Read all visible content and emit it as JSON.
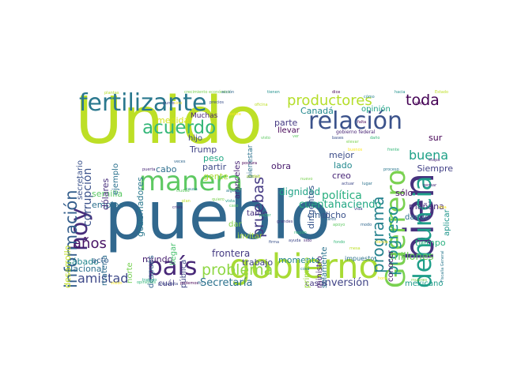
{
  "colors": {
    "background": "#ffffff"
  },
  "words": [
    {
      "text": "Unido",
      "color": "#bddf26",
      "vertical": false
    },
    {
      "text": "pueblo",
      "color": "#31688e",
      "vertical": false
    },
    {
      "text": "gobierno",
      "color": "#a8db34",
      "vertical": false
    },
    {
      "text": "fertilizante",
      "color": "#2a788e",
      "vertical": false
    },
    {
      "text": "bien",
      "color": "#46327e",
      "vertical": true
    },
    {
      "text": "relación",
      "color": "#3b528b",
      "vertical": false
    },
    {
      "text": "manera",
      "color": "#5ec962",
      "vertical": false
    },
    {
      "text": "país",
      "color": "#482878",
      "vertical": false
    },
    {
      "text": "Guerrero",
      "color": "#7ad151",
      "vertical": true
    },
    {
      "text": "denuncia",
      "color": "#1f9e89",
      "vertical": true
    },
    {
      "text": "hoy",
      "color": "#472d7b",
      "vertical": true
    },
    {
      "text": "acuerdo",
      "color": "#35b779",
      "vertical": false
    },
    {
      "text": "productores",
      "color": "#b5de2b",
      "vertical": false
    },
    {
      "text": "información",
      "color": "#355f8d",
      "vertical": true
    },
    {
      "text": "programa",
      "color": "#26828e",
      "vertical": true
    },
    {
      "text": "progreso",
      "color": "#21918c",
      "vertical": true
    },
    {
      "text": "pruebas",
      "color": "#443983",
      "vertical": true
    },
    {
      "text": "problema",
      "color": "#8fd744",
      "vertical": false
    },
    {
      "text": "toda",
      "color": "#440154",
      "vertical": false
    },
    {
      "text": "años",
      "color": "#481467",
      "vertical": false
    },
    {
      "text": "amistad",
      "color": "#3e4989",
      "vertical": false
    },
    {
      "text": "buena",
      "color": "#1fa187",
      "vertical": false
    },
    {
      "text": "corrupción",
      "color": "#3b528b",
      "vertical": true
    },
    {
      "text": "inversión",
      "color": "#414487",
      "vertical": false
    },
    {
      "text": "Secretaría",
      "color": "#2c728e",
      "vertical": false
    },
    {
      "text": "política",
      "color": "#29af7f",
      "vertical": false
    },
    {
      "text": "millones",
      "color": "#6ccd5a",
      "vertical": false
    },
    {
      "text": "haciendo",
      "color": "#22a785",
      "vertical": false
    },
    {
      "text": "cuenta",
      "color": "#26ad81",
      "vertical": false
    },
    {
      "text": "dignidad",
      "color": "#20a386",
      "vertical": false
    },
    {
      "text": "frontera",
      "color": "#443a83",
      "vertical": false
    },
    {
      "text": "mundo",
      "color": "#482071",
      "vertical": false
    },
    {
      "text": "tiempo",
      "color": "#2ab07f",
      "vertical": false
    },
    {
      "text": "mañana",
      "color": "#472c7a",
      "vertical": false
    },
    {
      "text": "Nacional",
      "color": "#2d718e",
      "vertical": false
    },
    {
      "text": "sábado",
      "color": "#24878e",
      "vertical": false
    },
    {
      "text": "casos",
      "color": "#453882",
      "vertical": false
    },
    {
      "text": "mexicano",
      "color": "#1e9c89",
      "vertical": false
    },
    {
      "text": "trabajo",
      "color": "#404588",
      "vertical": false
    },
    {
      "text": "momento",
      "color": "#24868e",
      "vertical": false
    },
    {
      "text": "Canadá",
      "color": "#23888e",
      "vertical": false
    },
    {
      "text": "parte",
      "color": "#443983",
      "vertical": false
    },
    {
      "text": "medida",
      "color": "#d2e21b",
      "vertical": false
    },
    {
      "text": "Trump",
      "color": "#414487",
      "vertical": false
    },
    {
      "text": "peso",
      "color": "#22a884",
      "vertical": false
    },
    {
      "text": "partir",
      "color": "#3e4a89",
      "vertical": false
    },
    {
      "text": "cabo",
      "color": "#2e6f8e",
      "vertical": false
    },
    {
      "text": "semilla",
      "color": "#5ac864",
      "vertical": false
    },
    {
      "text": "empleo",
      "color": "#2d708e",
      "vertical": false
    },
    {
      "text": "obra",
      "color": "#481b6d",
      "vertical": false
    },
    {
      "text": "gente",
      "color": "#addc30",
      "vertical": false
    },
    {
      "text": "mejor",
      "color": "#3d4e8a",
      "vertical": false
    },
    {
      "text": "lado",
      "color": "#23898e",
      "vertical": false
    },
    {
      "text": "creo",
      "color": "#482677",
      "vertical": false
    },
    {
      "text": "cinco",
      "color": "#365c8d",
      "vertical": false
    },
    {
      "text": "dicho",
      "color": "#3b528b",
      "vertical": false
    },
    {
      "text": "sólo",
      "color": "#471063",
      "vertical": false
    },
    {
      "text": "dando",
      "color": "#2e6e8e",
      "vertical": false
    },
    {
      "text": "sur",
      "color": "#440154",
      "vertical": false
    },
    {
      "text": "Siempre",
      "color": "#424086",
      "vertical": false
    },
    {
      "text": "opinión",
      "color": "#1fa287",
      "vertical": false
    },
    {
      "text": "dólares",
      "color": "#472e7c",
      "vertical": true
    },
    {
      "text": "ejemplo",
      "color": "#2c728e",
      "vertical": true
    },
    {
      "text": "gobernadores",
      "color": "#2a788e",
      "vertical": true
    },
    {
      "text": "desarrollo",
      "color": "#c2df23",
      "vertical": true
    },
    {
      "text": "materia",
      "color": "#2f6c8e",
      "vertical": true
    },
    {
      "text": "después",
      "color": "#32648e",
      "vertical": true
    },
    {
      "text": "norte",
      "color": "#77d153",
      "vertical": true
    },
    {
      "text": "llegar",
      "color": "#48c16e",
      "vertical": true
    },
    {
      "text": "pública",
      "color": "#3f4788",
      "vertical": true
    },
    {
      "text": "dirigentes",
      "color": "#39568c",
      "vertical": true
    },
    {
      "text": "solamente",
      "color": "#2c738e",
      "vertical": true
    },
    {
      "text": "ministro",
      "color": "#482173",
      "vertical": true
    },
    {
      "text": "primero",
      "color": "#9bd93c",
      "vertical": true
    },
    {
      "text": "conocer",
      "color": "#481769",
      "vertical": true
    },
    {
      "text": "aplicar",
      "color": "#1f958b",
      "vertical": true
    },
    {
      "text": "acto",
      "color": "#355e8d",
      "vertical": false
    },
    {
      "text": "cuál",
      "color": "#443a83",
      "vertical": false
    },
    {
      "text": "invitar",
      "color": "#a5db36",
      "vertical": false
    },
    {
      "text": "dar",
      "color": "#86d549",
      "vertical": false
    },
    {
      "text": "tarde",
      "color": "#472f7d",
      "vertical": false
    },
    {
      "text": "hijo",
      "color": "#3f4889",
      "vertical": false
    },
    {
      "text": "Muchas",
      "color": "#481f70",
      "vertical": false
    },
    {
      "text": "llevar",
      "color": "#440154",
      "vertical": false
    },
    {
      "text": "aranceles",
      "color": "#482475",
      "vertical": true
    },
    {
      "text": "bienestar",
      "color": "#2c728e",
      "vertical": true
    },
    {
      "text": "secretario",
      "color": "#3b528b",
      "vertical": true
    },
    {
      "text": "impuesto",
      "color": "#2d718e",
      "vertical": false
    },
    {
      "text": "crecimiento económico",
      "color": "#7ad151",
      "vertical": false
    },
    {
      "text": "gobierno federal",
      "color": "#482475",
      "vertical": false
    },
    {
      "text": "Fiscalía General",
      "color": "#2a788e",
      "vertical": true
    },
    {
      "text": "plantas",
      "color": "#b5de2b",
      "vertical": false
    },
    {
      "text": "Marco",
      "color": "#31688e",
      "vertical": false
    },
    {
      "text": "podemos",
      "color": "#440154",
      "vertical": false
    },
    {
      "text": "opiniones",
      "color": "#35b779",
      "vertical": false
    },
    {
      "text": "social",
      "color": "#355f8d",
      "vertical": false
    },
    {
      "text": "tratado",
      "color": "#22a884",
      "vertical": false
    },
    {
      "text": "alguna",
      "color": "#2a788e",
      "vertical": false
    },
    {
      "text": "crisis",
      "color": "#472d7b",
      "vertical": false
    },
    {
      "text": "vista",
      "color": "#1f9e89",
      "vertical": false
    },
    {
      "text": "causa",
      "color": "#26828e",
      "vertical": false
    },
    {
      "text": "actuar",
      "color": "#3e4989",
      "vertical": false
    },
    {
      "text": "apoyo",
      "color": "#5ec962",
      "vertical": false
    },
    {
      "text": "unidad",
      "color": "#bddf26",
      "vertical": false
    },
    {
      "text": "elevar",
      "color": "#7ad151",
      "vertical": false
    },
    {
      "text": "sido",
      "color": "#482878",
      "vertical": false
    },
    {
      "text": "lugar",
      "color": "#2c728e",
      "vertical": false
    },
    {
      "text": "hacia",
      "color": "#21918c",
      "vertical": false
    },
    {
      "text": "sino",
      "color": "#fde725",
      "vertical": false
    },
    {
      "text": "visto",
      "color": "#5ec962",
      "vertical": false
    },
    {
      "text": "existe",
      "color": "#fde725",
      "vertical": false
    },
    {
      "text": "bases",
      "color": "#3b528b",
      "vertical": false
    },
    {
      "text": "daño",
      "color": "#35b779",
      "vertical": false
    },
    {
      "text": "postura",
      "color": "#440154",
      "vertical": false
    },
    {
      "text": "grandes",
      "color": "#443983",
      "vertical": false
    },
    {
      "text": "vida",
      "color": "#414487",
      "vertical": false
    },
    {
      "text": "modo",
      "color": "#31688e",
      "vertical": false
    },
    {
      "text": "proceso",
      "color": "#2a788e",
      "vertical": false
    },
    {
      "text": "oficina",
      "color": "#bddf26",
      "vertical": false
    },
    {
      "text": "tienen",
      "color": "#21918c",
      "vertical": false
    },
    {
      "text": "puerta",
      "color": "#482878",
      "vertical": false
    },
    {
      "text": "ciudad",
      "color": "#5ec962",
      "vertical": false
    },
    {
      "text": "buenos",
      "color": "#fde725",
      "vertical": false
    },
    {
      "text": "frente",
      "color": "#35b779",
      "vertical": false
    },
    {
      "text": "precios",
      "color": "#3b528b",
      "vertical": false
    },
    {
      "text": "nuevo",
      "color": "#7ad151",
      "vertical": false
    },
    {
      "text": "Estado",
      "color": "#bddf26",
      "vertical": false
    },
    {
      "text": "acción",
      "color": "#31688e",
      "vertical": false
    },
    {
      "text": "dice",
      "color": "#440154",
      "vertical": false
    },
    {
      "text": "cómo",
      "color": "#26828e",
      "vertical": false
    },
    {
      "text": "propuesta",
      "color": "#3e4989",
      "vertical": false
    },
    {
      "text": "poder",
      "color": "#35b779",
      "vertical": false
    },
    {
      "text": "tienda",
      "color": "#fde725",
      "vertical": false
    },
    {
      "text": "etapa",
      "color": "#482878",
      "vertical": false
    },
    {
      "text": "revisar",
      "color": "#31688e",
      "vertical": false
    },
    {
      "text": "mujeres",
      "color": "#7ad151",
      "vertical": false
    },
    {
      "text": "caso",
      "color": "#5ec962",
      "vertical": false
    },
    {
      "text": "falta",
      "color": "#440154",
      "vertical": false
    },
    {
      "text": "ayuda",
      "color": "#3e4989",
      "vertical": false
    },
    {
      "text": "visión",
      "color": "#fde725",
      "vertical": false
    },
    {
      "text": "mesa",
      "color": "#bddf26",
      "vertical": false
    },
    {
      "text": "veces",
      "color": "#31688e",
      "vertical": false
    },
    {
      "text": "quiero",
      "color": "#7ad151",
      "vertical": false
    },
    {
      "text": "región",
      "color": "#35b779",
      "vertical": false
    },
    {
      "text": "pensar",
      "color": "#482878",
      "vertical": false
    },
    {
      "text": "hora",
      "color": "#fde725",
      "vertical": false
    },
    {
      "text": "viaje",
      "color": "#440154",
      "vertical": false
    },
    {
      "text": "cosa",
      "color": "#26828e",
      "vertical": false
    },
    {
      "text": "plan",
      "color": "#bddf26",
      "vertical": false
    },
    {
      "text": "punto",
      "color": "#3e4989",
      "vertical": false
    },
    {
      "text": "ver",
      "color": "#5ec962",
      "vertical": false
    },
    {
      "text": "fin",
      "color": "#31688e",
      "vertical": false
    },
    {
      "text": "meta",
      "color": "#7ad151",
      "vertical": false
    },
    {
      "text": "idea",
      "color": "#fde725",
      "vertical": false
    },
    {
      "text": "firma",
      "color": "#3b528b",
      "vertical": false
    },
    {
      "text": "fondo",
      "color": "#35b779",
      "vertical": false
    }
  ]
}
